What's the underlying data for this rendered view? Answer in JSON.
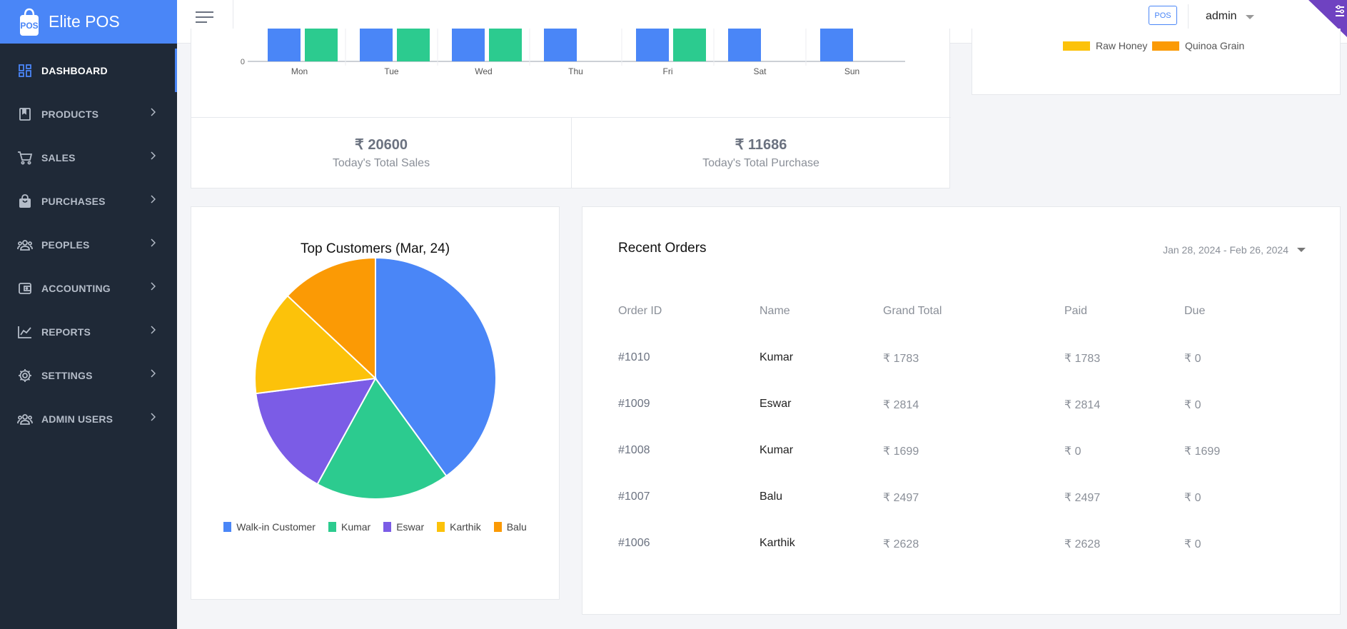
{
  "app": {
    "title": "Elite POS"
  },
  "sidebar": {
    "items": [
      {
        "label": "DASHBOARD",
        "icon": "dashboard-icon",
        "active": true
      },
      {
        "label": "PRODUCTS",
        "icon": "book-icon"
      },
      {
        "label": "SALES",
        "icon": "cart-icon"
      },
      {
        "label": "PURCHASES",
        "icon": "bag-icon"
      },
      {
        "label": "PEOPLES",
        "icon": "people-icon"
      },
      {
        "label": "ACCOUNTING",
        "icon": "wallet-icon"
      },
      {
        "label": "REPORTS",
        "icon": "chart-line-icon"
      },
      {
        "label": "SETTINGS",
        "icon": "gear-icon"
      },
      {
        "label": "ADMIN USERS",
        "icon": "admin-users-icon"
      }
    ]
  },
  "topbar": {
    "pos_label": "POS",
    "user": "admin"
  },
  "colors": {
    "primary": "#4a86f7",
    "green": "#2ccb8f",
    "purple": "#7b5ce6",
    "yellow": "#fcc20a",
    "orange": "#fb9a05",
    "sidebar": "#1f2937"
  },
  "stats": {
    "sales": {
      "value": "₹ 20600",
      "label": "Today's Total Sales"
    },
    "purchase": {
      "value": "₹ 11686",
      "label": "Today's Total Purchase"
    }
  },
  "top_products_legend": [
    {
      "label": "Raw Honey",
      "color": "#fcc20a"
    },
    {
      "label": "Quinoa Grain",
      "color": "#fb9a05"
    }
  ],
  "chart_data": [
    {
      "type": "bar",
      "categories": [
        "Mon",
        "Tue",
        "Wed",
        "Thu",
        "Fri",
        "Sat",
        "Sun"
      ],
      "y_tick": "0",
      "series": [
        {
          "color": "#4a86f7",
          "visible": [
            true,
            true,
            true,
            true,
            true,
            true,
            true
          ]
        },
        {
          "color": "#2ccb8f",
          "visible": [
            true,
            true,
            true,
            false,
            true,
            false,
            false
          ]
        }
      ]
    },
    {
      "type": "pie",
      "title": "Top Customers (Mar, 24)",
      "labels": [
        "Walk-in Customer",
        "Kumar",
        "Eswar",
        "Karthik",
        "Balu"
      ],
      "values": [
        40,
        18,
        15,
        14,
        13
      ],
      "colors": [
        "#4a86f7",
        "#2ccb8f",
        "#7b5ce6",
        "#fcc20a",
        "#fb9a05"
      ]
    }
  ],
  "orders": {
    "title": "Recent Orders",
    "date_range": "Jan 28, 2024 - Feb 26, 2024",
    "headers": [
      "Order ID",
      "Name",
      "Grand Total",
      "Paid",
      "Due"
    ],
    "rows": [
      [
        "#1010",
        "Kumar",
        "₹ 1783",
        "₹ 1783",
        "₹ 0"
      ],
      [
        "#1009",
        "Eswar",
        "₹ 2814",
        "₹ 2814",
        "₹ 0"
      ],
      [
        "#1008",
        "Kumar",
        "₹ 1699",
        "₹ 0",
        "₹ 1699"
      ],
      [
        "#1007",
        "Balu",
        "₹ 2497",
        "₹ 2497",
        "₹ 0"
      ],
      [
        "#1006",
        "Karthik",
        "₹ 2628",
        "₹ 2628",
        "₹ 0"
      ]
    ]
  }
}
